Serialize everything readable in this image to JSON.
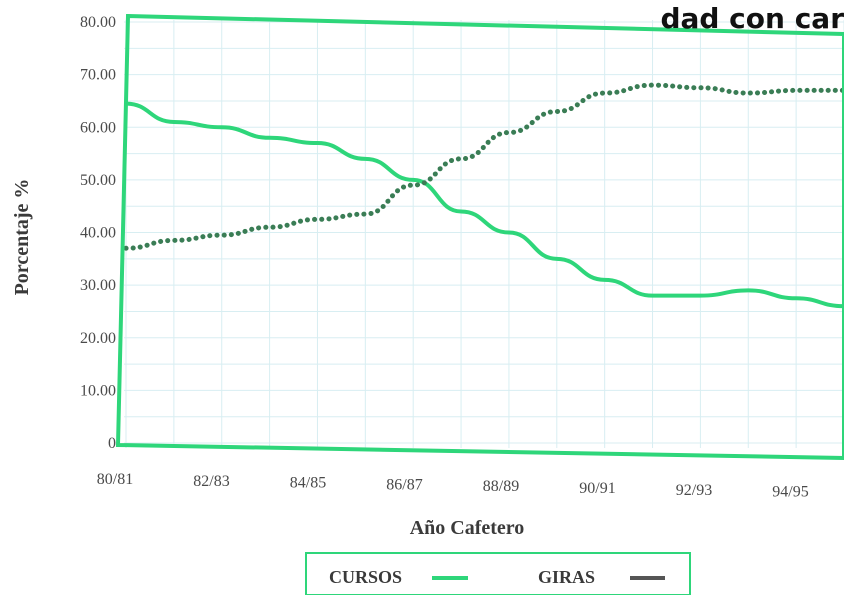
{
  "chart_data": {
    "type": "line",
    "title_fragment": "dad con car",
    "xlabel": "Año Cafetero",
    "ylabel": "Porcentaje %",
    "x_ticks": [
      "80/81",
      "82/83",
      "84/85",
      "86/87",
      "88/89",
      "90/91",
      "92/93",
      "94/95"
    ],
    "y_ticks": [
      "80.00",
      "70.00",
      "60.00",
      "50.00",
      "40.00",
      "30.00",
      "20.00",
      "10.00",
      "0"
    ],
    "ylim": [
      0,
      80
    ],
    "grid": true,
    "legend_position": "bottom",
    "colors": {
      "accent": "#2ed67a",
      "giras_marker": "#555555",
      "giras_line": "#3a7d55"
    },
    "series": [
      {
        "name": "CURSOS",
        "style": "solid",
        "points": [
          [
            "80/81",
            64.5
          ],
          [
            "81/82",
            61
          ],
          [
            "82/83",
            60
          ],
          [
            "83/84",
            58
          ],
          [
            "84/85",
            57
          ],
          [
            "85/86",
            54
          ],
          [
            "86/87",
            50
          ],
          [
            "87/88",
            44
          ],
          [
            "88/89",
            40
          ],
          [
            "89/90",
            35
          ],
          [
            "90/91",
            31
          ],
          [
            "91/92",
            28
          ],
          [
            "92/93",
            28
          ],
          [
            "93/94",
            29
          ],
          [
            "94/95",
            27.5
          ],
          [
            "95/96",
            26
          ]
        ]
      },
      {
        "name": "GIRAS",
        "style": "dotted",
        "points": [
          [
            "80/81",
            37
          ],
          [
            "81/82",
            38.5
          ],
          [
            "82/83",
            39.5
          ],
          [
            "83/84",
            41
          ],
          [
            "84/85",
            42.5
          ],
          [
            "85/86",
            43.5
          ],
          [
            "86/87",
            49
          ],
          [
            "87/88",
            54
          ],
          [
            "88/89",
            59
          ],
          [
            "89/90",
            63
          ],
          [
            "90/91",
            66.5
          ],
          [
            "91/92",
            68
          ],
          [
            "92/93",
            67.5
          ],
          [
            "93/94",
            66.5
          ],
          [
            "94/95",
            67
          ],
          [
            "95/96",
            67
          ]
        ]
      }
    ]
  }
}
